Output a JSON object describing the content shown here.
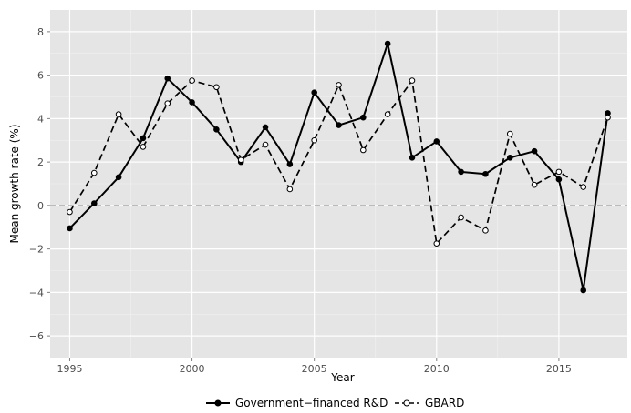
{
  "chart_data": {
    "type": "line",
    "xlabel": "Year",
    "ylabel": "Mean growth rate (%)",
    "xlim": [
      1994.2,
      2017.8
    ],
    "ylim": [
      -7,
      9
    ],
    "x_ticks": [
      1995,
      2000,
      2005,
      2010,
      2015
    ],
    "y_ticks": [
      -6,
      -4,
      -2,
      0,
      2,
      4,
      6,
      8
    ],
    "grid": true,
    "reference_line": {
      "y": 0,
      "style": "dashed"
    },
    "legend_position": "bottom",
    "x": [
      1995,
      1996,
      1997,
      1998,
      1999,
      2000,
      2001,
      2002,
      2003,
      2004,
      2005,
      2006,
      2007,
      2008,
      2009,
      2010,
      2011,
      2012,
      2013,
      2014,
      2015,
      2016,
      2017
    ],
    "series": [
      {
        "name": "Government−financed R&D",
        "style": "solid",
        "marker": "filled-circle",
        "color": "#000000",
        "values": [
          -1.05,
          0.1,
          1.3,
          3.1,
          5.85,
          4.75,
          3.5,
          2.0,
          3.6,
          1.9,
          5.2,
          3.7,
          4.05,
          7.45,
          2.2,
          2.95,
          1.55,
          1.45,
          2.2,
          2.5,
          1.2,
          -3.9,
          4.25
        ]
      },
      {
        "name": "GBARD",
        "style": "dashed",
        "marker": "open-circle",
        "color": "#000000",
        "values": [
          -0.3,
          1.5,
          4.2,
          2.7,
          4.7,
          5.75,
          5.45,
          2.1,
          2.8,
          0.75,
          3.0,
          5.55,
          2.55,
          4.2,
          5.75,
          -1.75,
          -0.55,
          -1.15,
          3.3,
          0.95,
          1.55,
          0.85,
          4.05
        ]
      }
    ]
  }
}
